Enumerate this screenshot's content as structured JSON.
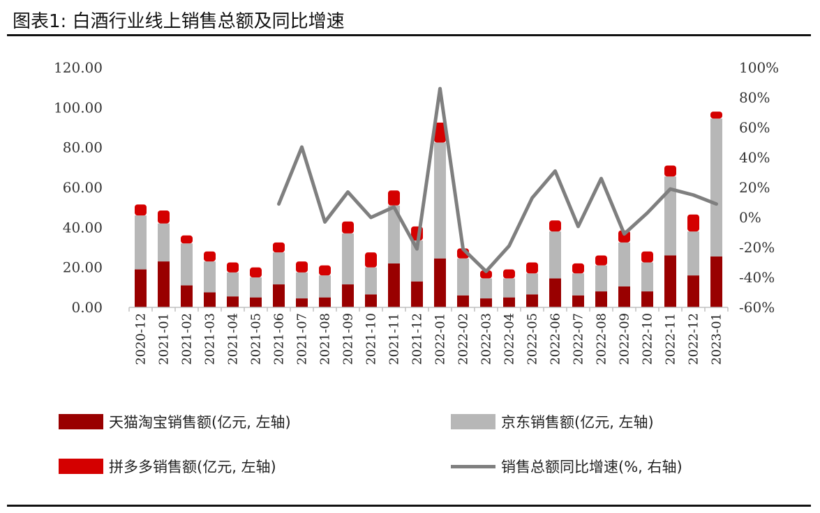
{
  "page_title": "图表1:  白酒行业线上销售总额及同比增速",
  "chart_data": {
    "type": "bar",
    "stacked": true,
    "categories": [
      "2020-12",
      "2021-01",
      "2021-02",
      "2021-03",
      "2021-04",
      "2021-05",
      "2021-06",
      "2021-07",
      "2021-08",
      "2021-09",
      "2021-10",
      "2021-11",
      "2021-12",
      "2022-01",
      "2022-02",
      "2022-03",
      "2022-04",
      "2022-05",
      "2022-06",
      "2022-07",
      "2022-08",
      "2022-09",
      "2022-10",
      "2022-11",
      "2022-12",
      "2023-01"
    ],
    "series": [
      {
        "name": "天猫淘宝销售额(亿元, 左轴)",
        "color": "#990000",
        "axis": "left",
        "kind": "bar",
        "values": [
          19,
          23,
          11,
          7.5,
          5.5,
          5,
          11.5,
          4.5,
          5,
          11.5,
          6.5,
          22,
          13,
          24.5,
          6,
          4.5,
          5,
          6.5,
          14.5,
          6,
          8,
          10.5,
          8,
          26,
          16,
          25.5
        ]
      },
      {
        "name": "京东销售额(亿元, 左轴)",
        "color": "#b7b7b7",
        "axis": "left",
        "kind": "bar",
        "values": [
          27,
          19,
          21,
          15.5,
          12,
          10,
          16,
          13,
          11,
          25.5,
          13.5,
          29,
          20.5,
          58,
          18.5,
          10,
          9.5,
          10.5,
          23.5,
          11,
          13,
          22,
          14.5,
          39.5,
          22,
          69
        ]
      },
      {
        "name": "拼多多销售额(亿元, 左轴)",
        "color": "#d40000",
        "axis": "left",
        "kind": "bar",
        "values": [
          5.5,
          6.5,
          4,
          5,
          5,
          5,
          5,
          5.5,
          5,
          6,
          7.5,
          7.5,
          7,
          10,
          5,
          4,
          4.5,
          5.5,
          5.5,
          5,
          5,
          6,
          5.5,
          5.5,
          8.5,
          3.5
        ]
      },
      {
        "name": "销售总额同比增速(%, 右轴)",
        "color": "#7f7f7f",
        "axis": "right",
        "kind": "line",
        "values": [
          null,
          null,
          null,
          null,
          null,
          null,
          9,
          47,
          -3,
          17,
          0,
          7,
          -21,
          86,
          -21,
          -36,
          -19,
          13,
          31,
          -6,
          26,
          -11,
          3,
          19,
          15,
          9
        ]
      }
    ],
    "y_left": {
      "min": 0,
      "max": 120,
      "step": 20,
      "tick_labels": [
        "0.00",
        "20.00",
        "40.00",
        "60.00",
        "80.00",
        "100.00",
        "120.00"
      ]
    },
    "y_right": {
      "min": -60,
      "max": 100,
      "step": 20,
      "tick_labels": [
        "-60%",
        "-40%",
        "-20%",
        "0%",
        "20%",
        "40%",
        "60%",
        "80%",
        "100%"
      ]
    },
    "grid": false,
    "legend_position": "bottom"
  }
}
